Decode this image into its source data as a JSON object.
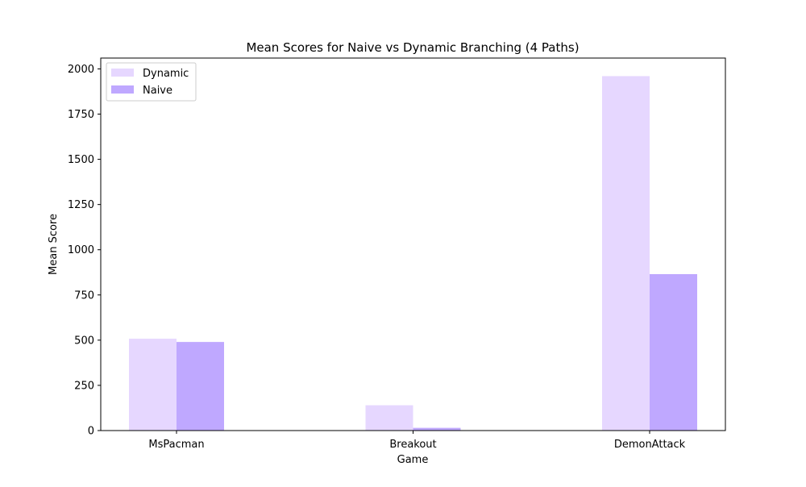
{
  "chart_data": {
    "type": "bar",
    "title": "Mean Scores for Naive vs Dynamic Branching (4 Paths)",
    "xlabel": "Game",
    "ylabel": "Mean Score",
    "categories": [
      "MsPacman",
      "Breakout",
      "DemonAttack"
    ],
    "series": [
      {
        "name": "Dynamic",
        "color": "#e6d7ff",
        "values": [
          508,
          140,
          1960
        ]
      },
      {
        "name": "Naive",
        "color": "#bfa8ff",
        "values": [
          490,
          15,
          865
        ]
      }
    ],
    "ylim": [
      0,
      2060
    ],
    "yticks": [
      0,
      250,
      500,
      750,
      1000,
      1250,
      1500,
      1750,
      2000
    ],
    "legend_position": "top-left",
    "grid": false
  }
}
